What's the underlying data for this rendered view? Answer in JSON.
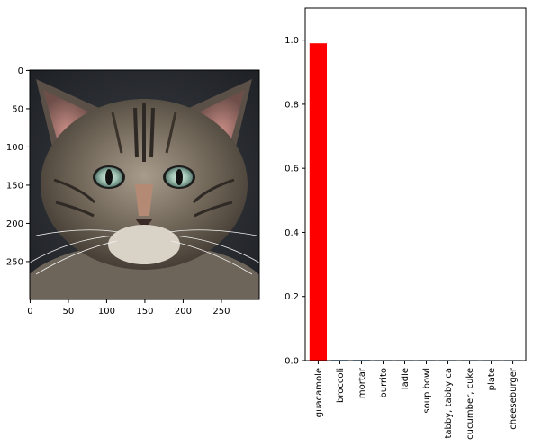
{
  "figure": {
    "left_panel": {
      "type": "image",
      "subject": "cat-face",
      "x_ticks": [
        "0",
        "50",
        "100",
        "150",
        "200",
        "250"
      ],
      "y_ticks": [
        "0",
        "50",
        "100",
        "150",
        "200",
        "250"
      ],
      "x_range": [
        0,
        299
      ],
      "y_range": [
        299,
        0
      ]
    }
  },
  "chart_data": {
    "type": "bar",
    "categories": [
      "guacamole",
      "broccoli",
      "mortar",
      "burrito",
      "ladle",
      "soup bowl",
      "tabby, tabby ca",
      "cucumber, cuke",
      "plate",
      "cheeseburger"
    ],
    "values": [
      0.99,
      0.002,
      0.002,
      0.0005,
      0.0003,
      0.0002,
      0.0002,
      0.0001,
      0.0001,
      0.0001
    ],
    "bar_colors": [
      "#ff0000",
      "#1f77b4",
      "#1f77b4",
      "#1f77b4",
      "#1f77b4",
      "#1f77b4",
      "#1f77b4",
      "#1f77b4",
      "#1f77b4",
      "#1f77b4"
    ],
    "ylim": [
      0,
      1.1
    ],
    "y_ticks": [
      "0.0",
      "0.2",
      "0.4",
      "0.6",
      "0.8",
      "1.0"
    ],
    "title": "",
    "xlabel": "",
    "ylabel": "",
    "grid": false
  }
}
